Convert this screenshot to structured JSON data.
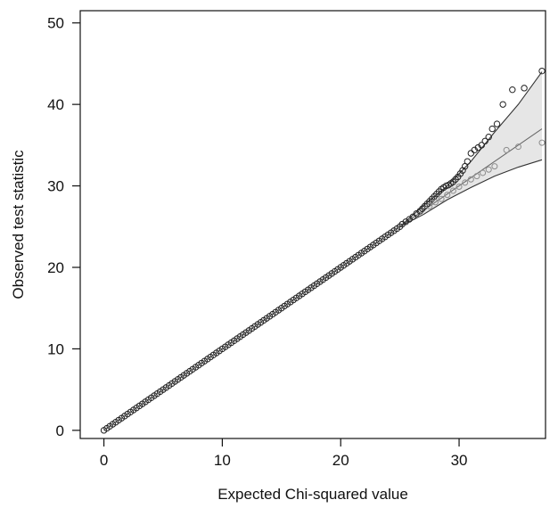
{
  "chart_data": {
    "type": "scatter",
    "xlabel": "Expected Chi-squared value",
    "ylabel": "Observed test statistic",
    "xlim": [
      -2,
      37.3
    ],
    "ylim": [
      -1,
      51.5
    ],
    "x_ticks": [
      0,
      10,
      20,
      30
    ],
    "y_ticks": [
      0,
      10,
      20,
      30,
      40,
      50
    ],
    "grid": false,
    "legend": "none",
    "colors": {
      "observed_points": "#222222",
      "alternate_points": "#8c8c8c",
      "band_fill": "#e6e6e6",
      "envelope_line": "#333333"
    },
    "reference_line": {
      "x": [
        0,
        37
      ],
      "y": [
        0,
        37
      ]
    },
    "confidence_band": {
      "x": [
        25,
        27,
        29,
        31,
        33,
        35,
        37
      ],
      "lower": [
        25,
        26.5,
        28.3,
        29.8,
        31.2,
        32.3,
        33.2
      ],
      "upper": [
        25,
        27.6,
        30.0,
        33.0,
        36.6,
        40.0,
        44.0
      ]
    },
    "series": [
      {
        "role": "observed",
        "dense_diagonal": {
          "x_from": 0,
          "x_to": 25,
          "step": 0.25,
          "slope": 1
        },
        "x": [
          25.2,
          25.5,
          25.8,
          26.1,
          26.4,
          26.7,
          26.9,
          27.1,
          27.3,
          27.5,
          27.7,
          27.9,
          28.1,
          28.3,
          28.5,
          28.7,
          28.9,
          29.1,
          29.3,
          29.5,
          29.7,
          29.9,
          30.1,
          30.3,
          30.5,
          30.7,
          31.0,
          31.3,
          31.6,
          31.9,
          32.2,
          32.5,
          32.8,
          33.2,
          33.7,
          34.5,
          35.5,
          37.0
        ],
        "y": [
          25.3,
          25.6,
          25.9,
          26.2,
          26.6,
          26.9,
          27.2,
          27.5,
          27.8,
          28.1,
          28.4,
          28.7,
          29.0,
          29.3,
          29.6,
          29.8,
          30.0,
          30.1,
          30.3,
          30.5,
          30.8,
          31.1,
          31.5,
          31.9,
          32.4,
          33.0,
          34.0,
          34.4,
          34.7,
          35.0,
          35.5,
          36.0,
          37.0,
          37.6,
          40.0,
          41.8,
          42.0,
          44.1
        ]
      },
      {
        "role": "alternate",
        "x": [
          27.5,
          28.0,
          28.5,
          29.0,
          29.5,
          30.0,
          30.5,
          31.0,
          31.5,
          32.0,
          32.5,
          33.0,
          34.0,
          35.0,
          37.0
        ],
        "y": [
          27.5,
          28.0,
          28.4,
          28.9,
          29.4,
          29.9,
          30.4,
          30.8,
          31.2,
          31.6,
          32.0,
          32.4,
          34.4,
          34.8,
          35.3
        ]
      }
    ]
  }
}
